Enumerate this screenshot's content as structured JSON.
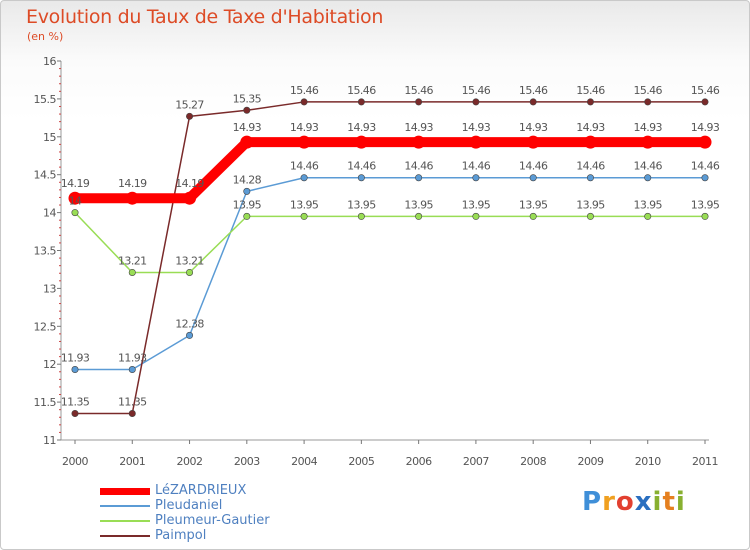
{
  "header": {
    "title": "Evolution du Taux de Taxe d'Habitation",
    "subtitle": "(en %)"
  },
  "logo": {
    "text": "Proxiti"
  },
  "chart_data": {
    "type": "line",
    "title": "Evolution du Taux de Taxe d'Habitation",
    "ylabel": "(en %)",
    "xlabel": "",
    "x": [
      "2000",
      "2001",
      "2002",
      "2003",
      "2004",
      "2005",
      "2006",
      "2007",
      "2008",
      "2009",
      "2010",
      "2011"
    ],
    "ylim": [
      11,
      16
    ],
    "yticks": [
      "11",
      "11.5",
      "12",
      "12.5",
      "13",
      "13.5",
      "14",
      "14.5",
      "15",
      "15.5",
      "16"
    ],
    "grid": false,
    "legend_position": "bottom-left",
    "series": [
      {
        "name": "LéZARDRIEUX",
        "color": "#ff0000",
        "emphasis": true,
        "values": [
          14.19,
          14.19,
          14.19,
          14.93,
          14.93,
          14.93,
          14.93,
          14.93,
          14.93,
          14.93,
          14.93,
          14.93
        ],
        "labels": [
          "14.19",
          "14.19",
          "14.19",
          "14.93",
          "14.93",
          "14.93",
          "14.93",
          "14.93",
          "14.93",
          "14.93",
          "14.93",
          "14.93"
        ]
      },
      {
        "name": "Pleudaniel",
        "color": "#5b9bd5",
        "emphasis": false,
        "values": [
          11.93,
          11.93,
          12.38,
          14.28,
          14.46,
          14.46,
          14.46,
          14.46,
          14.46,
          14.46,
          14.46,
          14.46
        ],
        "labels": [
          "11.93",
          "11.93",
          "12.38",
          "14.28",
          "14.46",
          "14.46",
          "14.46",
          "14.46",
          "14.46",
          "14.46",
          "14.46",
          "14.46"
        ]
      },
      {
        "name": "Pleumeur-Gautier",
        "color": "#99dd55",
        "emphasis": false,
        "values": [
          14,
          13.21,
          13.21,
          13.95,
          13.95,
          13.95,
          13.95,
          13.95,
          13.95,
          13.95,
          13.95,
          13.95
        ],
        "labels": [
          "14",
          "13.21",
          "13.21",
          "13.95",
          "13.95",
          "13.95",
          "13.95",
          "13.95",
          "13.95",
          "13.95",
          "13.95",
          "13.95"
        ]
      },
      {
        "name": "Paimpol",
        "color": "#7a2a2a",
        "emphasis": false,
        "values": [
          11.35,
          11.35,
          15.27,
          15.35,
          15.46,
          15.46,
          15.46,
          15.46,
          15.46,
          15.46,
          15.46,
          15.46
        ],
        "labels": [
          "11.35",
          "11.35",
          "15.27",
          "15.35",
          "15.46",
          "15.46",
          "15.46",
          "15.46",
          "15.46",
          "15.46",
          "15.46",
          "15.46"
        ]
      }
    ]
  }
}
